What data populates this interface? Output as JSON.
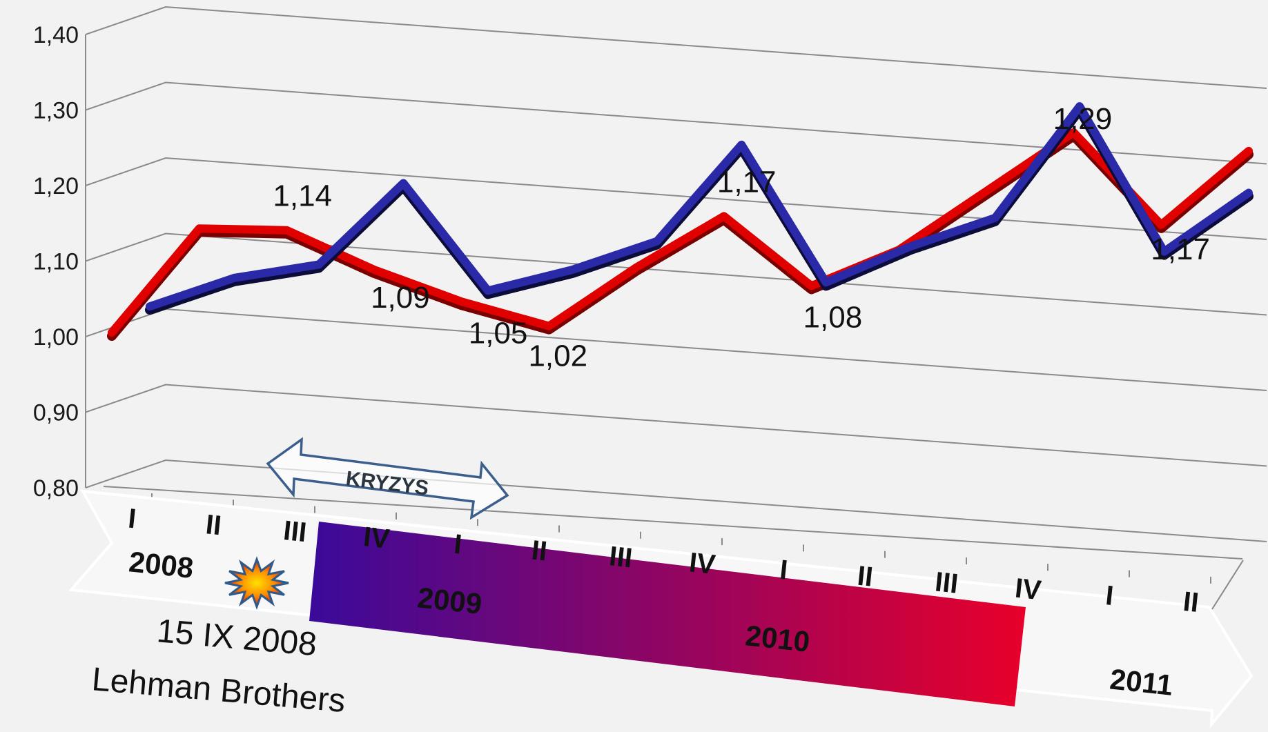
{
  "chart_data": {
    "type": "line",
    "y_axis": {
      "ylim": [
        0.8,
        1.4
      ],
      "tick_labels": [
        "0,80",
        "0,90",
        "1,00",
        "1,10",
        "1,20",
        "1,30",
        "1,40"
      ]
    },
    "x_axis": {
      "quarters": [
        "I",
        "II",
        "III",
        "IV",
        "I",
        "II",
        "III",
        "IV",
        "I",
        "II",
        "III",
        "IV",
        "I",
        "II"
      ],
      "years": [
        "2008",
        "2009",
        "2010",
        "2011"
      ]
    },
    "series": [
      {
        "color": "#e00000",
        "values": [
          1.0,
          1.14,
          1.14,
          1.09,
          1.05,
          1.02,
          1.1,
          1.17,
          1.08,
          1.13,
          1.21,
          1.29,
          1.17,
          1.27
        ],
        "data_labels": [
          "",
          "",
          "1,14",
          "1,09",
          "1,05",
          "1,02",
          "",
          "1,17",
          "1,08",
          "",
          "",
          "1,29",
          "1,17",
          ""
        ]
      },
      {
        "color": "#2a2aa8",
        "values": [
          1.03,
          1.07,
          1.09,
          1.2,
          1.06,
          1.09,
          1.13,
          1.26,
          1.08,
          1.13,
          1.17,
          1.32,
          1.13,
          1.21
        ]
      }
    ],
    "crisis_band": {
      "from_index": 3,
      "to_index": 11,
      "color_start": "#3a0a9a",
      "color_end": "#e8002a"
    },
    "crisis_arrow_label": "KRYZYS",
    "annotation": {
      "date": "15 IX 2008",
      "text": "Lehman Brothers"
    },
    "grid": true
  }
}
